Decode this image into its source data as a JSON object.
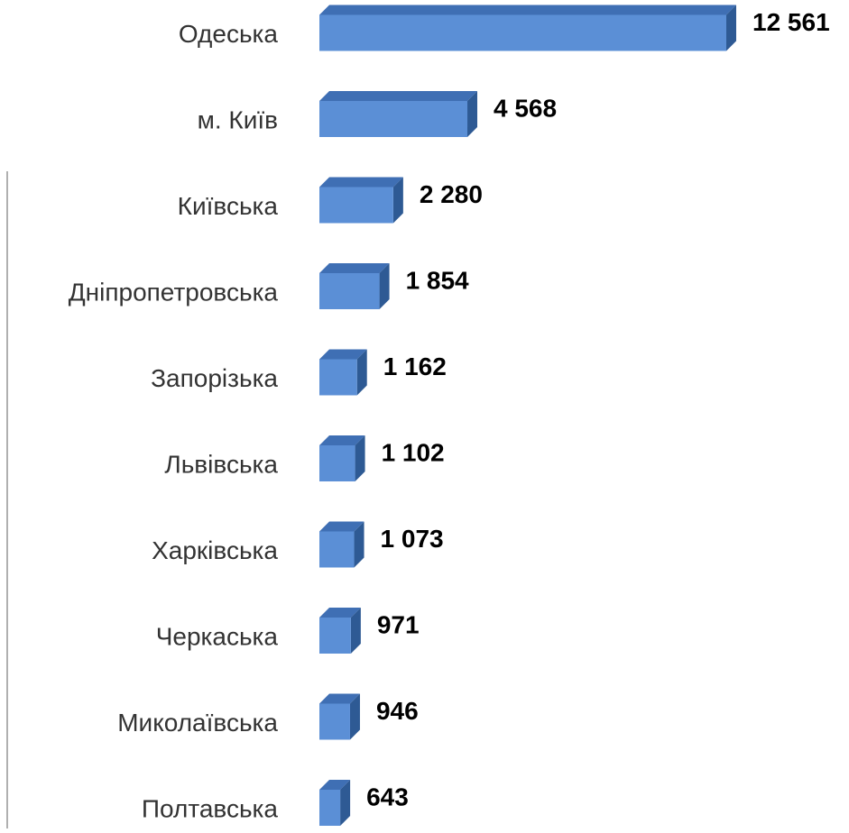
{
  "chart_data": {
    "type": "bar",
    "orientation": "horizontal",
    "style": "3d",
    "categories": [
      "Одеська",
      "м. Київ",
      "Київська",
      "Дніпропетровська",
      "Запорізька",
      "Львівська",
      "Харківська",
      "Черкаська",
      "Миколаївська",
      "Полтавська"
    ],
    "values": [
      12561,
      4568,
      2280,
      1854,
      1162,
      1102,
      1073,
      971,
      946,
      643
    ],
    "data_labels": [
      "12 561",
      "4 568",
      "2 280",
      "1 854",
      "1 162",
      "1 102",
      "1 073",
      "971",
      "946",
      "643"
    ],
    "colors": {
      "bar_front": "#5b8fd6",
      "bar_top": "#3f6fb4",
      "bar_side": "#2e5a94",
      "label_text": "#000000",
      "category_text": "#333333"
    },
    "grid": false,
    "legend": "none"
  }
}
